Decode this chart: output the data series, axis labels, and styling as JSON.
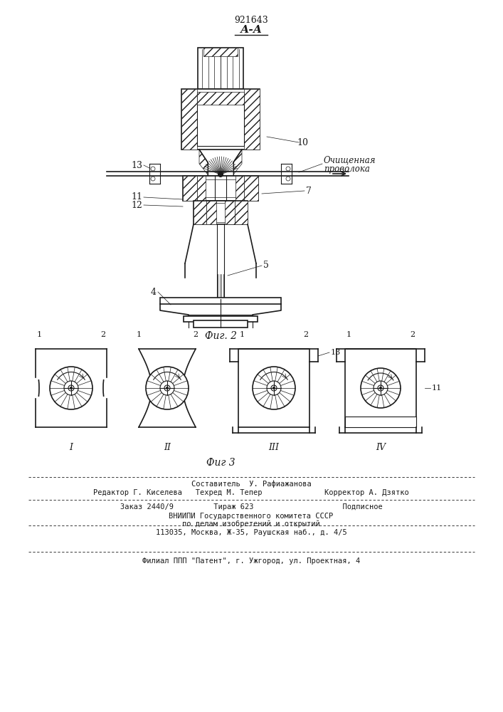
{
  "patent_number": "921643",
  "section_label": "А-А",
  "fig2_label": "Фиг. 2",
  "fig3_label": "Фиг 3",
  "label_10": "10",
  "label_7": "7",
  "label_13": "13",
  "label_11": "11",
  "label_12": "12",
  "label_4": "4",
  "label_5": "5",
  "annotation_text": "Очищенная\nпроволока",
  "roman_I": "I",
  "roman_II": "II",
  "roman_III": "III",
  "roman_IV": "IV",
  "fig3_num13": "13",
  "fig3_num11": "11",
  "footer_line1": "Составитель  У. Рафиажанова",
  "footer_line2": "Редактор Г. Киселева   Техред М. Тепер              Корректор А. Дзятко",
  "footer_line3": "Заказ 2440/9         Тираж 623                    Подписное",
  "footer_line4": "ВНИИПИ Государственного комитета СССР",
  "footer_line5": "по делам изобретений и открытий",
  "footer_line6": "113035, Москва, Ж-35, Раушская наб., д. 4/5",
  "footer_line7": "Филиал ППП \"Патент\", г. Ужгород, ул. Проектная, 4",
  "bg_color": "#ffffff",
  "line_color": "#1a1a1a"
}
